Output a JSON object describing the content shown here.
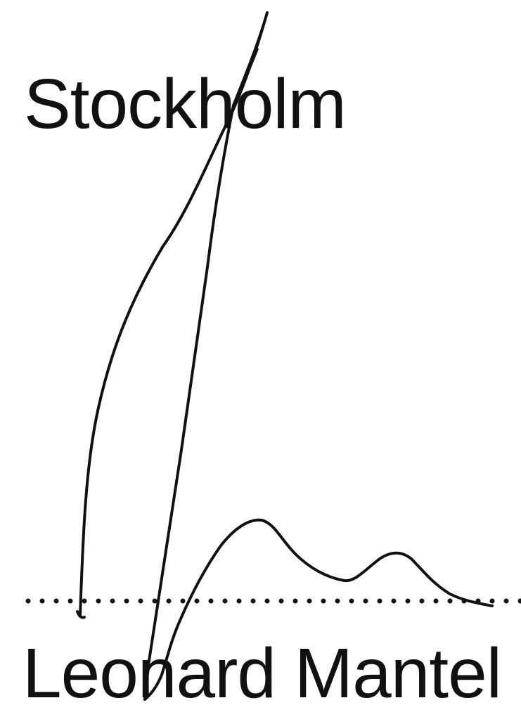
{
  "document": {
    "place": "Stockholm",
    "signatory_name": "Leonard Mantel"
  },
  "colors": {
    "ink": "#111111",
    "background": "#ffffff"
  }
}
